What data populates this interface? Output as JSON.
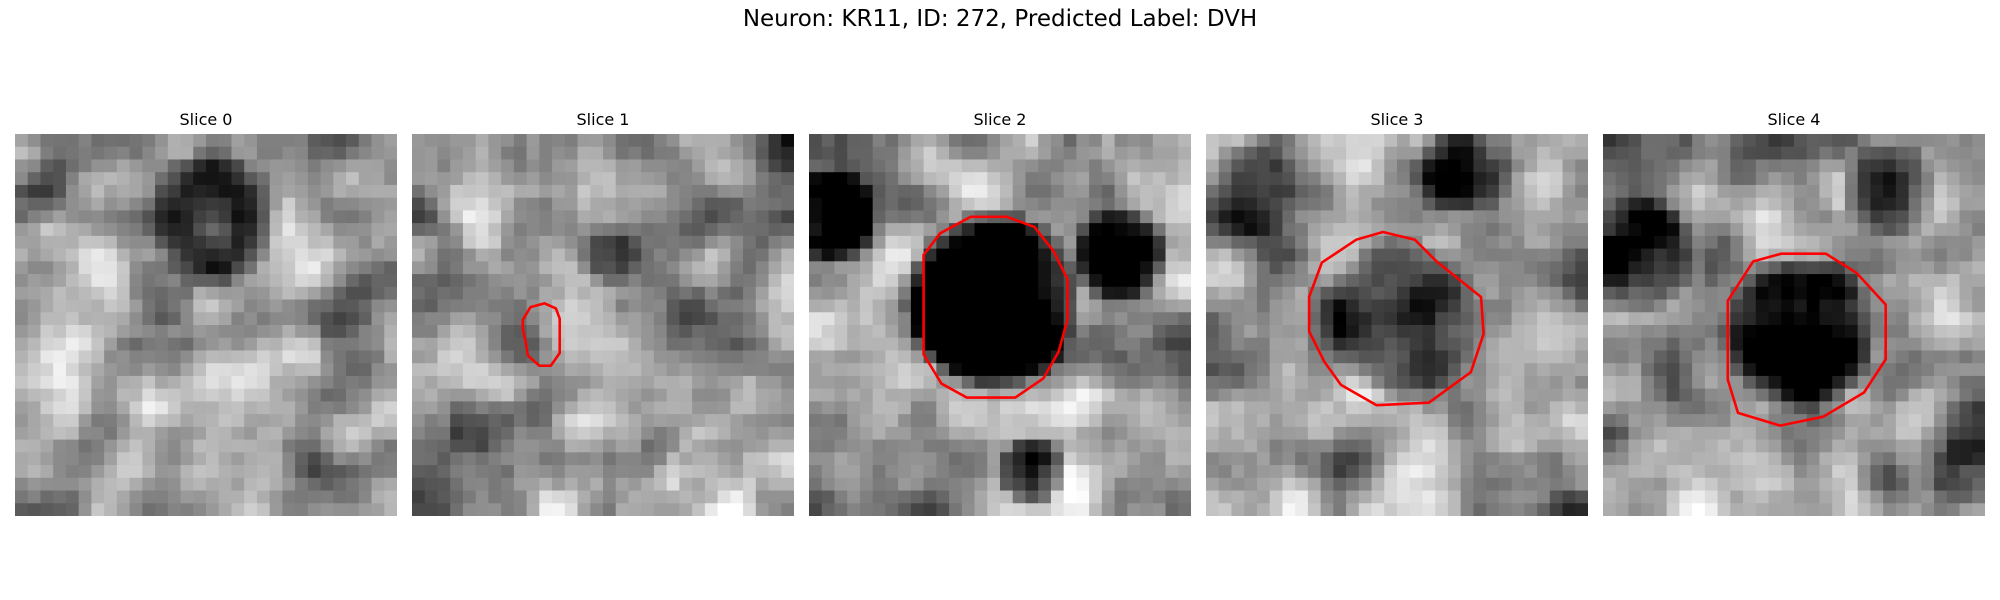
{
  "figure": {
    "title": "Neuron: KR11, ID: 272, Predicted Label: DVH"
  },
  "panels": [
    {
      "title": "Slice 0",
      "contour_color": "#ff0000",
      "has_contour": false,
      "seed": 11,
      "pattern": "star-dark"
    },
    {
      "title": "Slice 1",
      "contour_color": "#ff0000",
      "has_contour": true,
      "seed": 23,
      "pattern": "light-blob"
    },
    {
      "title": "Slice 2",
      "contour_color": "#ff0000",
      "has_contour": true,
      "seed": 37,
      "pattern": "black-cell"
    },
    {
      "title": "Slice 3",
      "contour_color": "#ff0000",
      "has_contour": true,
      "seed": 41,
      "pattern": "dark-cell"
    },
    {
      "title": "Slice 4",
      "contour_color": "#ff0000",
      "has_contour": true,
      "seed": 53,
      "pattern": "dark-cell-2"
    }
  ]
}
